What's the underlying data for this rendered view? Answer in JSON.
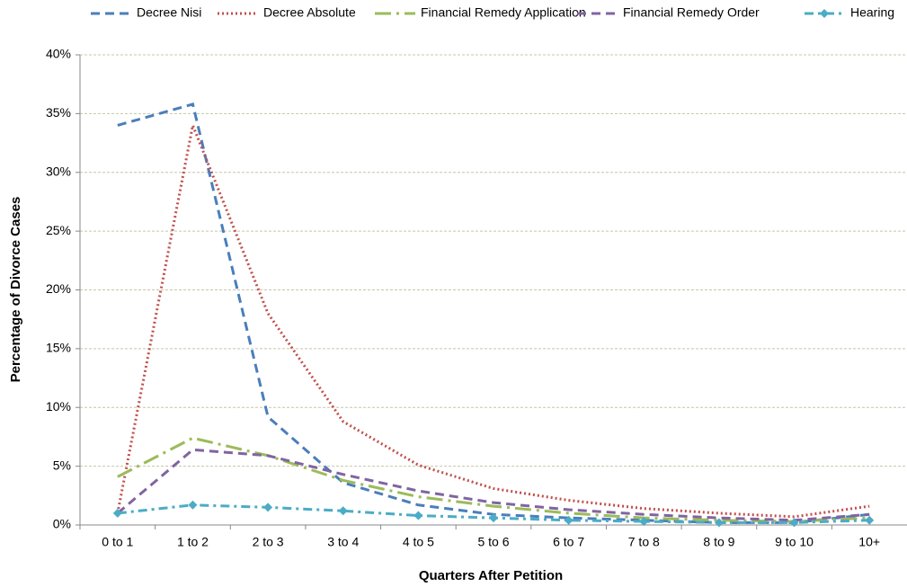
{
  "chart_data": {
    "type": "line",
    "xlabel": "Quarters After Petition",
    "ylabel": "Percentage of Divorce Cases",
    "categories": [
      "0 to 1",
      "1 to 2",
      "2 to 3",
      "3 to 4",
      "4 to 5",
      "5 to 6",
      "6 to 7",
      "7 to 8",
      "8 to 9",
      "9 to 10",
      "10+"
    ],
    "series": [
      {
        "name": "Decree Nisi",
        "color": "#4a7ebb",
        "line_style": "dashed",
        "values": [
          34.0,
          35.8,
          9.2,
          3.6,
          1.7,
          0.9,
          0.6,
          0.4,
          0.2,
          0.2,
          0.9
        ]
      },
      {
        "name": "Decree Absolute",
        "color": "#c0504d",
        "line_style": "dotted",
        "values": [
          1.0,
          34.0,
          18.0,
          8.8,
          5.1,
          3.1,
          2.1,
          1.4,
          1.0,
          0.7,
          1.6
        ]
      },
      {
        "name": "Financial Remedy Application",
        "color": "#9bbb59",
        "line_style": "longdashdot",
        "values": [
          4.1,
          7.4,
          5.9,
          3.8,
          2.4,
          1.6,
          1.0,
          0.6,
          0.4,
          0.3,
          0.6
        ]
      },
      {
        "name": "Financial Remedy Order",
        "color": "#8064a2",
        "line_style": "dashed",
        "values": [
          1.0,
          6.4,
          5.9,
          4.3,
          2.9,
          1.9,
          1.3,
          0.9,
          0.6,
          0.4,
          0.9
        ]
      },
      {
        "name": "Hearing",
        "color": "#4bacc6",
        "line_style": "dashdot",
        "marker": "diamond",
        "values": [
          1.0,
          1.7,
          1.5,
          1.2,
          0.8,
          0.6,
          0.4,
          0.3,
          0.2,
          0.2,
          0.4
        ]
      }
    ],
    "ylim": [
      0,
      40
    ],
    "yticks": [
      {
        "value": 0,
        "label": "0%"
      },
      {
        "value": 5,
        "label": "5%"
      },
      {
        "value": 10,
        "label": "10%"
      },
      {
        "value": 15,
        "label": "15%"
      },
      {
        "value": 20,
        "label": "20%"
      },
      {
        "value": 25,
        "label": "25%"
      },
      {
        "value": 30,
        "label": "30%"
      },
      {
        "value": 35,
        "label": "35%"
      },
      {
        "value": 40,
        "label": "40%"
      }
    ],
    "grid": true,
    "legend": "top"
  }
}
